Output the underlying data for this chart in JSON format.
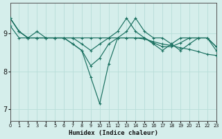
{
  "xlabel": "Humidex (Indice chaleur)",
  "bg_color": "#d5eeeb",
  "grid_color": "#b8ddd9",
  "line_color": "#1a7060",
  "xlim": [
    0,
    23
  ],
  "ylim": [
    6.7,
    9.8
  ],
  "yticks": [
    7,
    8,
    9
  ],
  "xticks": [
    0,
    1,
    2,
    3,
    4,
    5,
    6,
    7,
    8,
    9,
    10,
    11,
    12,
    13,
    14,
    15,
    16,
    17,
    18,
    19,
    20,
    21,
    22,
    23
  ],
  "series": [
    [
      9.4,
      9.05,
      8.88,
      8.88,
      8.88,
      8.88,
      8.88,
      8.88,
      8.88,
      8.88,
      8.88,
      8.88,
      8.88,
      8.88,
      8.88,
      8.85,
      8.78,
      8.72,
      8.68,
      8.62,
      8.58,
      8.52,
      8.45,
      8.42
    ],
    [
      9.4,
      9.05,
      8.88,
      9.05,
      8.88,
      8.88,
      8.88,
      8.72,
      8.55,
      7.85,
      7.15,
      8.2,
      8.88,
      9.05,
      9.4,
      9.05,
      8.88,
      8.88,
      8.72,
      8.88,
      8.88,
      8.88,
      8.88,
      8.65
    ],
    [
      9.2,
      8.88,
      8.88,
      8.88,
      8.88,
      8.88,
      8.88,
      8.72,
      8.55,
      8.15,
      8.35,
      8.72,
      8.88,
      8.88,
      8.88,
      8.88,
      8.75,
      8.65,
      8.65,
      8.75,
      8.88,
      8.88,
      8.88,
      8.55
    ],
    [
      9.4,
      9.05,
      8.88,
      8.88,
      8.88,
      8.88,
      8.88,
      8.88,
      8.72,
      8.55,
      8.72,
      8.88,
      9.05,
      9.4,
      9.05,
      8.88,
      8.72,
      8.55,
      8.72,
      8.55,
      8.72,
      8.88,
      8.88,
      8.65
    ]
  ]
}
